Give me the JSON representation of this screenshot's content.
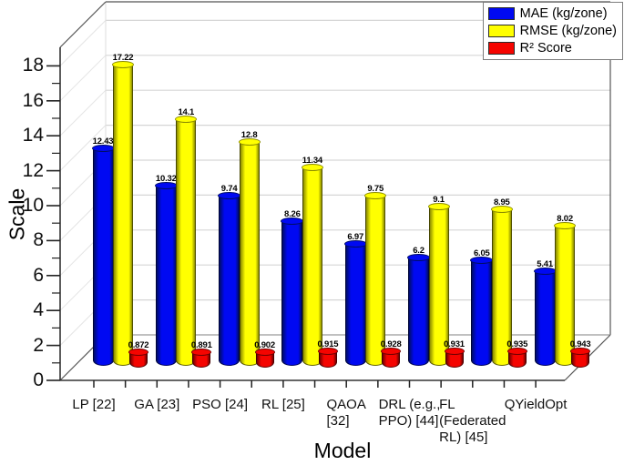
{
  "chart_data": {
    "type": "bar",
    "style": "3d-cylinder",
    "title": "",
    "xlabel": "Model",
    "ylabel": "Scale",
    "ylim": [
      0,
      19
    ],
    "yticks": [
      0,
      2,
      4,
      6,
      8,
      10,
      12,
      14,
      16,
      18
    ],
    "grid": true,
    "legend_position": "top-right",
    "categories": [
      "LP [22]",
      "GA [23]",
      "PSO [24]",
      "RL [25]",
      "QAOA [32]",
      "DRL (e.g., PPO) [44]",
      "FL (Federated RL) [45]",
      "QYieldOpt"
    ],
    "category_label_lines": [
      [
        "LP [22]"
      ],
      [
        "GA [23]"
      ],
      [
        "PSO [24]"
      ],
      [
        "RL [25]"
      ],
      [
        "QAOA",
        "[32]"
      ],
      [
        "DRL (e.g.,",
        "PPO) [44]"
      ],
      [
        "FL",
        "(Federated",
        "RL) [45]"
      ],
      [
        "QYieldOpt"
      ]
    ],
    "series": [
      {
        "key": "mae",
        "name": "MAE (kg/zone)",
        "color": "#0009f2",
        "color_dark": "#000d66",
        "values": [
          12.43,
          10.32,
          9.74,
          8.26,
          6.97,
          6.2,
          6.05,
          5.41
        ],
        "labels": [
          "12.43",
          "10.32",
          "9.74",
          "8.26",
          "6.97",
          "6.2",
          "6.05",
          "5.41"
        ]
      },
      {
        "key": "rmse",
        "name": "RMSE (kg/zone)",
        "color": "#ffff00",
        "color_dark": "#8c8c00",
        "values": [
          17.22,
          14.1,
          12.8,
          11.34,
          9.75,
          9.1,
          8.95,
          8.02
        ],
        "labels": [
          "17.22",
          "14.1",
          "12.8",
          "11.34",
          "9.75",
          "9.1",
          "8.95",
          "8.02"
        ]
      },
      {
        "key": "r2",
        "name": "R² Score",
        "color": "#f50400",
        "color_dark": "#700000",
        "values": [
          0.872,
          0.891,
          0.902,
          0.915,
          0.928,
          0.931,
          0.935,
          0.943
        ],
        "labels": [
          "0.872",
          "0.891",
          "0.902",
          "0.915",
          "0.928",
          "0.931",
          "0.935",
          "0.943"
        ]
      }
    ]
  }
}
